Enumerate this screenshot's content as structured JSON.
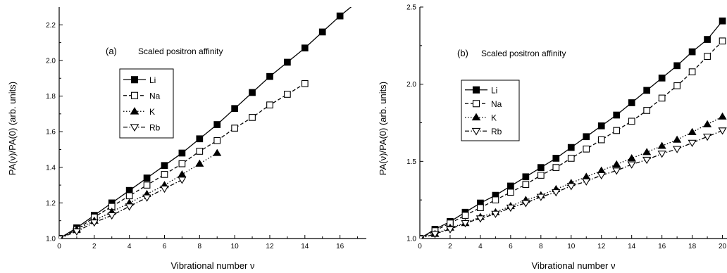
{
  "chart_data": [
    {
      "type": "line",
      "panel_label": "(a)",
      "title": "Scaled positron affinity",
      "xlabel": "Vibrational number ν",
      "ylabel": "PA(ν)/PA(0) (arb. units)",
      "xlim": [
        0,
        17.5
      ],
      "ylim": [
        1.0,
        2.3
      ],
      "xticks": [
        0,
        2,
        4,
        6,
        8,
        10,
        12,
        14,
        16
      ],
      "xtick_labels": [
        "0",
        "2",
        "4",
        "6",
        "8",
        "10",
        "12",
        "14",
        "16"
      ],
      "yticks": [
        1.0,
        1.2,
        1.4,
        1.6,
        1.8,
        2.0,
        2.2
      ],
      "ytick_labels": [
        "1.0",
        "1.2",
        "1.4",
        "1.6",
        "1.8",
        "2.0",
        "2.2"
      ],
      "grid": false,
      "legend_placement": "upper-left",
      "series": [
        {
          "name": "Li",
          "marker": "square-filled",
          "dash": "solid",
          "x": [
            0,
            1,
            2,
            3,
            4,
            5,
            6,
            7,
            8,
            9,
            10,
            11,
            12,
            13,
            14,
            15,
            16,
            17
          ],
          "y": [
            1.0,
            1.06,
            1.13,
            1.2,
            1.27,
            1.34,
            1.41,
            1.48,
            1.56,
            1.64,
            1.73,
            1.82,
            1.91,
            1.99,
            2.07,
            2.16,
            2.25,
            2.33
          ]
        },
        {
          "name": "Na",
          "marker": "square-open",
          "dash": "dashed",
          "x": [
            0,
            1,
            2,
            3,
            4,
            5,
            6,
            7,
            8,
            9,
            10,
            11,
            12,
            13,
            14
          ],
          "y": [
            1.0,
            1.05,
            1.12,
            1.18,
            1.24,
            1.3,
            1.36,
            1.42,
            1.49,
            1.55,
            1.62,
            1.68,
            1.75,
            1.81,
            1.87
          ]
        },
        {
          "name": "K",
          "marker": "triangle-filled",
          "dash": "dotted",
          "x": [
            0,
            1,
            2,
            3,
            4,
            5,
            6,
            7,
            8,
            9
          ],
          "y": [
            1.0,
            1.05,
            1.1,
            1.15,
            1.2,
            1.25,
            1.3,
            1.36,
            1.42,
            1.48
          ]
        },
        {
          "name": "Rb",
          "marker": "triangle-down-open",
          "dash": "dashdot",
          "x": [
            0,
            1,
            2,
            3,
            4,
            5,
            6,
            7
          ],
          "y": [
            1.0,
            1.04,
            1.09,
            1.13,
            1.18,
            1.23,
            1.28,
            1.33
          ]
        }
      ]
    },
    {
      "type": "line",
      "panel_label": "(b)",
      "title": "Scaled positron affinity",
      "xlabel": "Vibrational number ν",
      "ylabel": "PA(ν)/PA(0) (arb. units)",
      "xlim": [
        0,
        20.3
      ],
      "ylim": [
        1.0,
        2.5
      ],
      "xticks": [
        0,
        2,
        4,
        6,
        8,
        10,
        12,
        14,
        16,
        18,
        20
      ],
      "xtick_labels": [
        "0",
        "2",
        "4",
        "6",
        "8",
        "10",
        "12",
        "14",
        "16",
        "18",
        "20"
      ],
      "yticks": [
        1.0,
        1.5,
        2.0,
        2.5
      ],
      "ytick_labels": [
        "1.0",
        "1.5",
        "2.0",
        "2.5"
      ],
      "grid": false,
      "legend_placement": "upper-left",
      "series": [
        {
          "name": "Li",
          "marker": "square-filled",
          "dash": "solid",
          "x": [
            0,
            1,
            2,
            3,
            4,
            5,
            6,
            7,
            8,
            9,
            10,
            11,
            12,
            13,
            14,
            15,
            16,
            17,
            18,
            19,
            20
          ],
          "y": [
            1.0,
            1.06,
            1.11,
            1.17,
            1.23,
            1.28,
            1.34,
            1.4,
            1.46,
            1.52,
            1.59,
            1.66,
            1.73,
            1.8,
            1.88,
            1.96,
            2.04,
            2.12,
            2.21,
            2.29,
            2.41
          ]
        },
        {
          "name": "Na",
          "marker": "square-open",
          "dash": "dashed",
          "x": [
            0,
            1,
            2,
            3,
            4,
            5,
            6,
            7,
            8,
            9,
            10,
            11,
            12,
            13,
            14,
            15,
            16,
            17,
            18,
            19,
            20
          ],
          "y": [
            1.0,
            1.05,
            1.1,
            1.15,
            1.2,
            1.25,
            1.3,
            1.35,
            1.41,
            1.46,
            1.52,
            1.58,
            1.64,
            1.7,
            1.76,
            1.83,
            1.91,
            1.99,
            2.08,
            2.18,
            2.28
          ]
        },
        {
          "name": "K",
          "marker": "triangle-filled",
          "dash": "dotted",
          "x": [
            0,
            1,
            2,
            3,
            4,
            5,
            6,
            7,
            8,
            9,
            10,
            11,
            12,
            13,
            14,
            15,
            16,
            17,
            18,
            19,
            20
          ],
          "y": [
            1.0,
            1.03,
            1.07,
            1.1,
            1.14,
            1.17,
            1.21,
            1.25,
            1.28,
            1.32,
            1.36,
            1.4,
            1.44,
            1.48,
            1.52,
            1.56,
            1.6,
            1.64,
            1.69,
            1.74,
            1.79
          ]
        },
        {
          "name": "Rb",
          "marker": "triangle-down-open",
          "dash": "dashdot",
          "x": [
            0,
            1,
            2,
            3,
            4,
            5,
            6,
            7,
            8,
            9,
            10,
            11,
            12,
            13,
            14,
            15,
            16,
            17,
            18,
            19,
            20
          ],
          "y": [
            1.0,
            1.03,
            1.06,
            1.1,
            1.13,
            1.16,
            1.2,
            1.23,
            1.27,
            1.3,
            1.34,
            1.37,
            1.41,
            1.44,
            1.48,
            1.51,
            1.55,
            1.58,
            1.62,
            1.66,
            1.7
          ]
        }
      ]
    }
  ]
}
